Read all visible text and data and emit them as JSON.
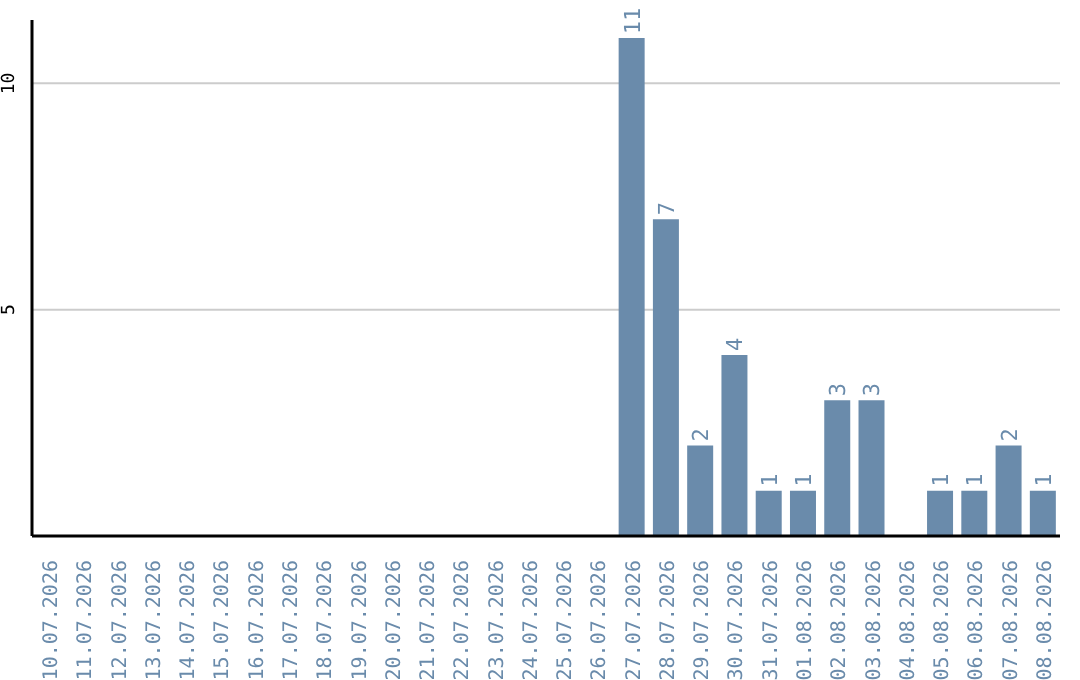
{
  "chart_data": {
    "type": "bar",
    "categories": [
      "10.07.2026",
      "11.07.2026",
      "12.07.2026",
      "13.07.2026",
      "14.07.2026",
      "15.07.2026",
      "16.07.2026",
      "17.07.2026",
      "18.07.2026",
      "19.07.2026",
      "20.07.2026",
      "21.07.2026",
      "22.07.2026",
      "23.07.2026",
      "24.07.2026",
      "25.07.2026",
      "26.07.2026",
      "27.07.2026",
      "28.07.2026",
      "29.07.2026",
      "30.07.2026",
      "31.07.2026",
      "01.08.2026",
      "02.08.2026",
      "03.08.2026",
      "04.08.2026",
      "05.08.2026",
      "06.08.2026",
      "07.08.2026",
      "08.08.2026"
    ],
    "values": [
      0,
      0,
      0,
      0,
      0,
      0,
      0,
      0,
      0,
      0,
      0,
      0,
      0,
      0,
      0,
      0,
      0,
      11,
      7,
      2,
      4,
      1,
      1,
      3,
      3,
      0,
      1,
      1,
      2,
      1
    ],
    "value_labels": [
      null,
      null,
      null,
      null,
      null,
      null,
      null,
      null,
      null,
      null,
      null,
      null,
      null,
      null,
      null,
      null,
      null,
      "11",
      "7",
      "2",
      "4",
      "1",
      "1",
      "3",
      "3",
      null,
      "1",
      "1",
      "2",
      "1"
    ],
    "color": "#6a8bab",
    "ylim": [
      0,
      11.4
    ],
    "yticks": [
      5,
      10
    ],
    "grid": "y"
  }
}
